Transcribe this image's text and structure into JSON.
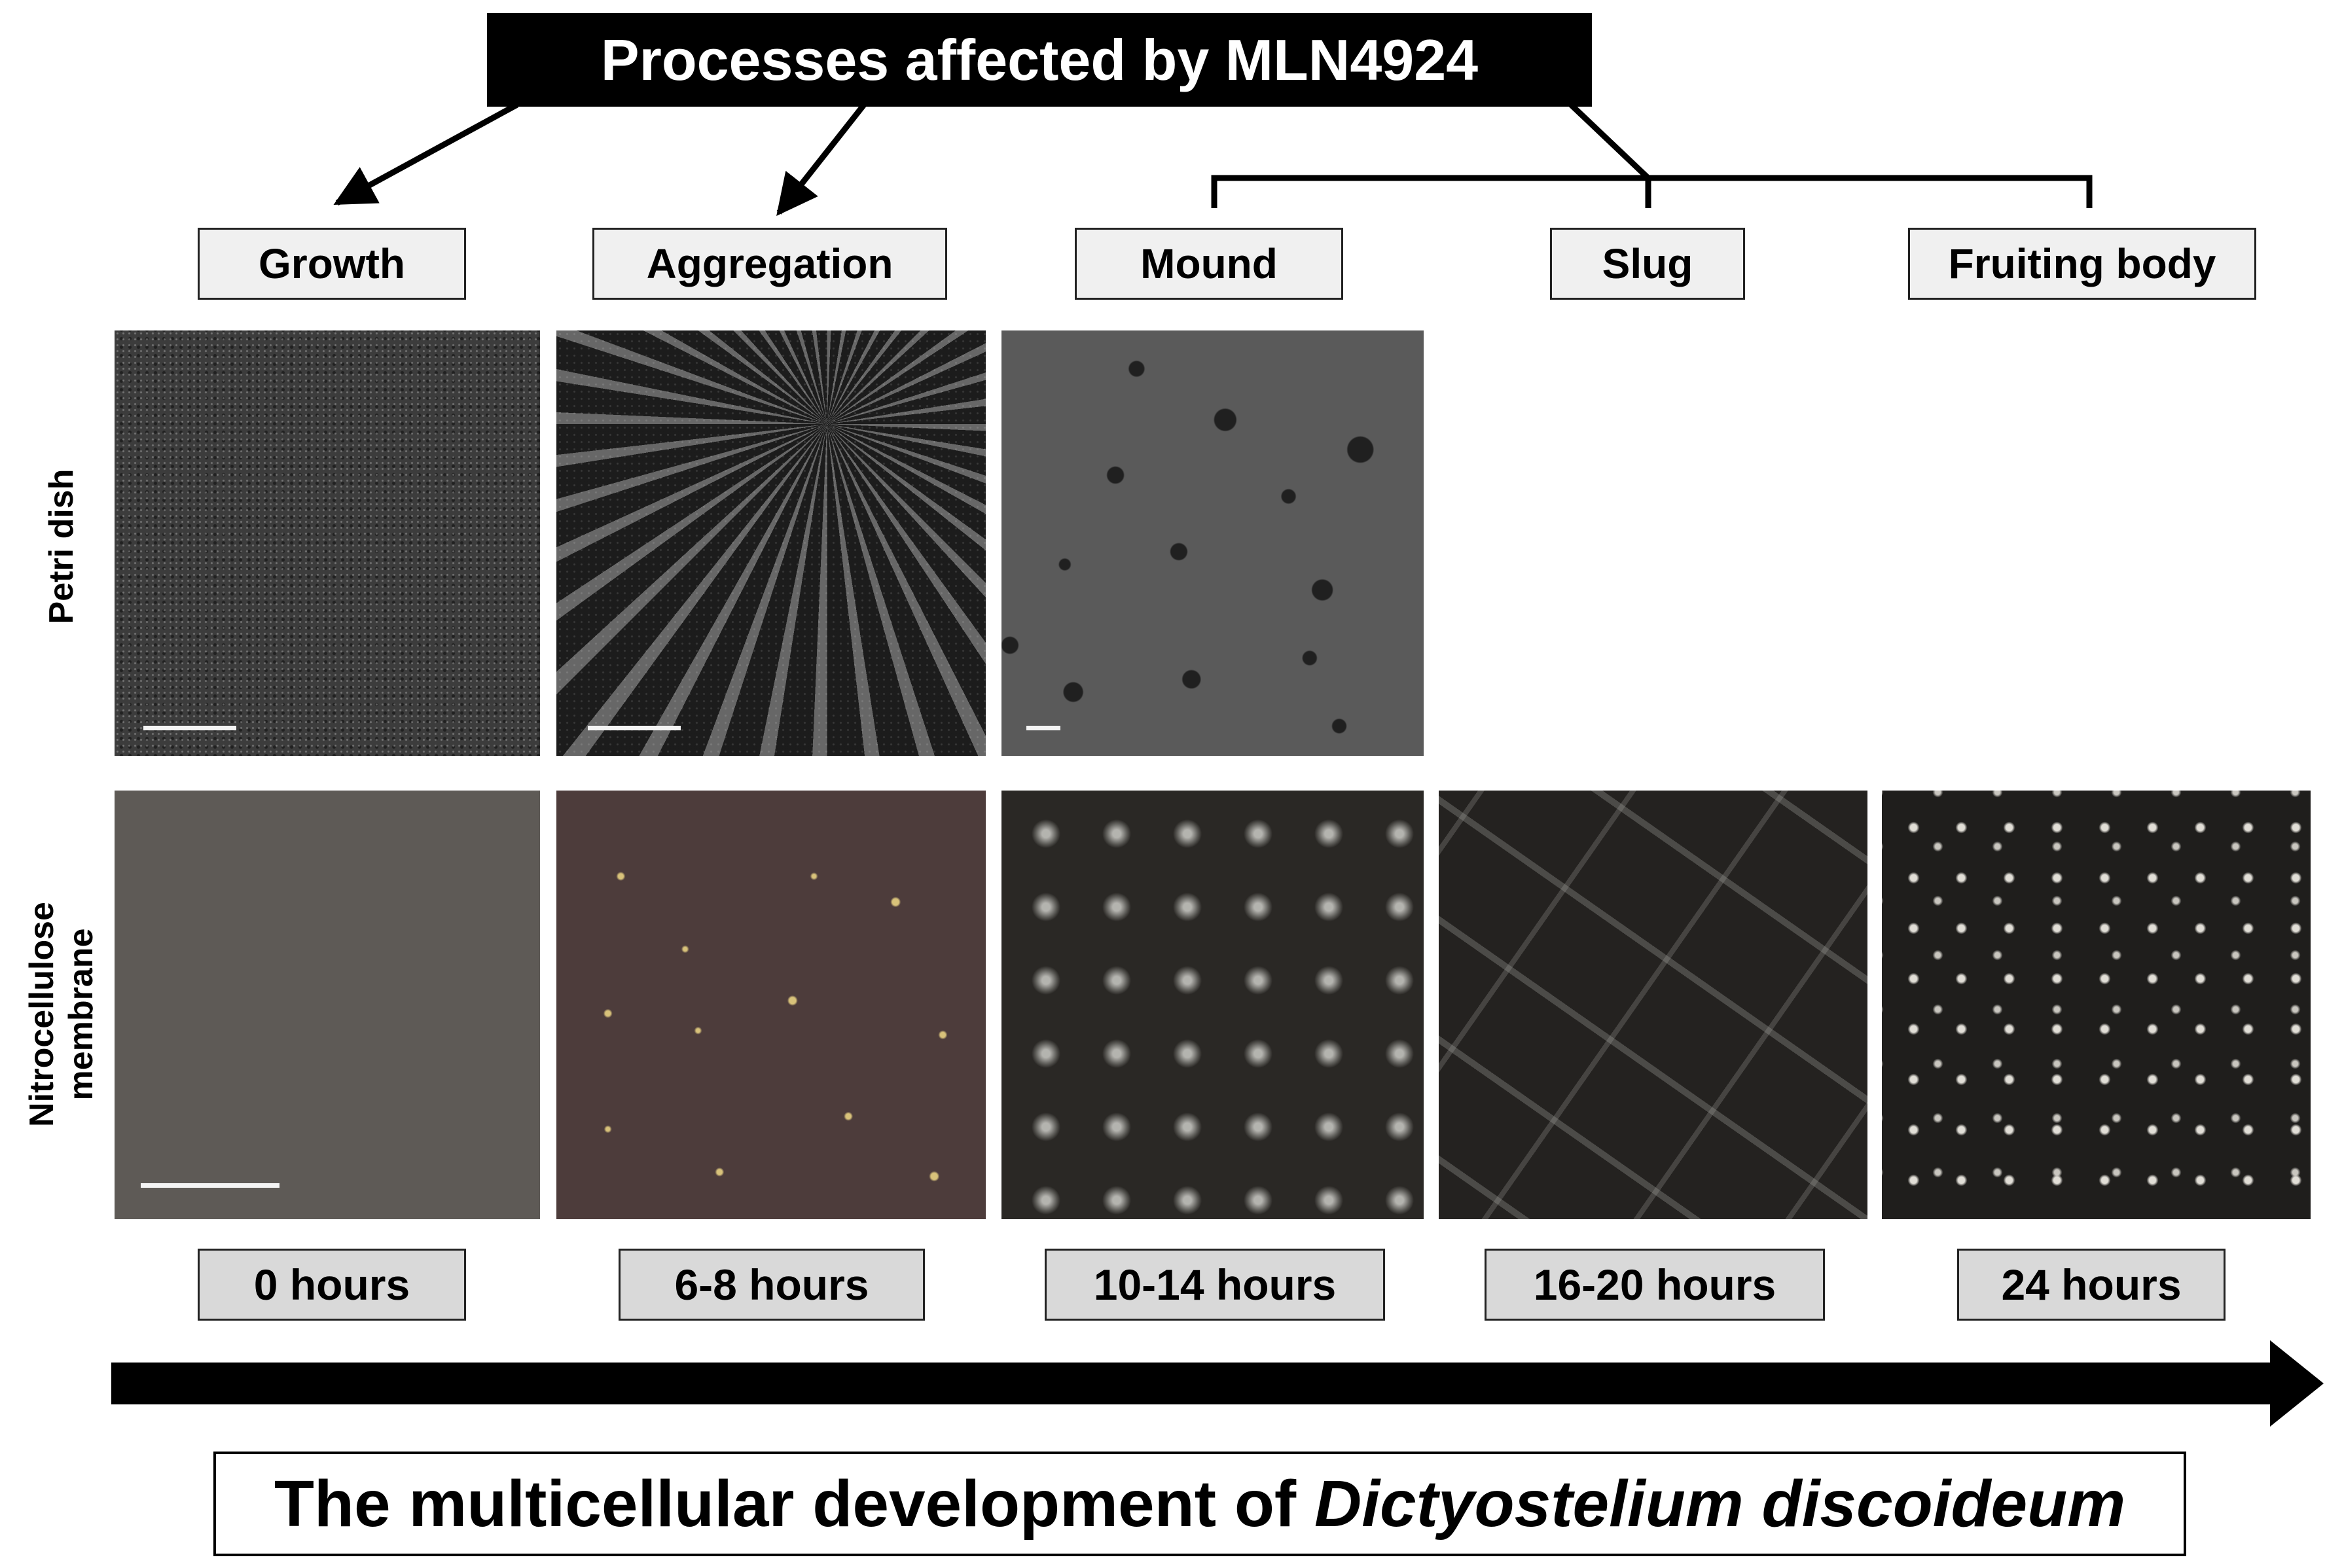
{
  "header": {
    "title": "Processes affected by MLN4924"
  },
  "stages": [
    "Growth",
    "Aggregation",
    "Mound",
    "Slug",
    "Fruiting body"
  ],
  "rows": {
    "petri": "Petri dish",
    "membrane_line1": "Nitrocellulose",
    "membrane_line2": "membrane"
  },
  "times": [
    "0 hours",
    "6-8 hours",
    "10-14 hours",
    "16-20 hours",
    "24 hours"
  ],
  "footer": {
    "prefix": "The multicellular development of ",
    "species": "Dictyostelium discoideum"
  },
  "colors": {
    "header_bg": "#000000",
    "stage_box": "#f0f0f0",
    "time_box": "#d9d9d9"
  }
}
